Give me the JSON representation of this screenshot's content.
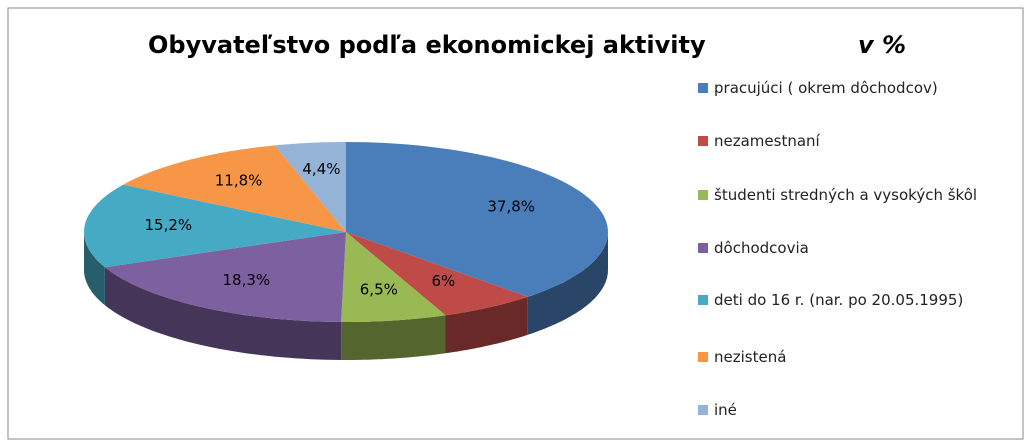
{
  "chart_data": {
    "type": "pie3d",
    "title": "Obyvateľstvo podľa ekonomickej aktivity",
    "subtitle": "v %",
    "categories": [
      "pracujúci ( okrem dôchodcov)",
      "nezamestnaní",
      "študenti stredných a vysokých škôl",
      "dôchodcovia",
      "deti do 16 r. (nar. po 20.05.1995)",
      "nezistená",
      "iné"
    ],
    "values": [
      37.8,
      6,
      6.5,
      18.3,
      15.2,
      11.8,
      4.4
    ],
    "value_labels": [
      "37,8%",
      "6%",
      "6,5%",
      "18,3%",
      "15,2%",
      "11,8%",
      "4,4%"
    ],
    "colors": [
      "#4a7ebb",
      "#be4b48",
      "#98b954",
      "#7d60a0",
      "#46aac5",
      "#f79646",
      "#95b3d7"
    ],
    "legend": "right"
  }
}
